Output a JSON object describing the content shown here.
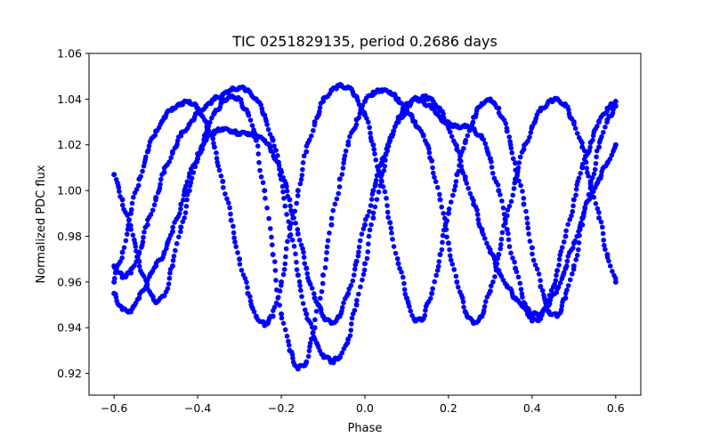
{
  "chart_data": {
    "type": "scatter",
    "title": "TIC 0251829135, period 0.2686 days",
    "xlabel": "Phase",
    "ylabel": "Normalized PDC flux",
    "xlim": [
      -0.66,
      0.66
    ],
    "ylim": [
      0.9105,
      1.06
    ],
    "xticks": [
      -0.6,
      -0.4,
      -0.2,
      0.0,
      0.2,
      0.4,
      0.6
    ],
    "xtick_labels": [
      "−0.6",
      "−0.4",
      "−0.2",
      "0.0",
      "0.2",
      "0.4",
      "0.6"
    ],
    "yticks": [
      0.92,
      0.94,
      0.96,
      0.98,
      1.0,
      1.02,
      1.04,
      1.06
    ],
    "ytick_labels": [
      "0.92",
      "0.94",
      "0.96",
      "0.98",
      "1.00",
      "1.02",
      "1.04",
      "1.06"
    ],
    "grid": false,
    "marker_color": "#0000ff",
    "series": [
      {
        "x": [
          -0.6,
          -0.58,
          -0.56,
          -0.54,
          -0.52,
          -0.5,
          -0.48,
          -0.46,
          -0.44,
          -0.42,
          -0.4,
          -0.38,
          -0.36,
          -0.34,
          -0.32,
          -0.3,
          -0.28,
          -0.26,
          -0.24,
          -0.22,
          -0.2,
          -0.18,
          -0.16,
          -0.14,
          -0.12,
          -0.1,
          -0.08,
          -0.06,
          -0.04,
          -0.02,
          0.0,
          0.02,
          0.04,
          0.06,
          0.08,
          0.1,
          0.12,
          0.14,
          0.16,
          0.18,
          0.2,
          0.22,
          0.24,
          0.26,
          0.28,
          0.3,
          0.32,
          0.34,
          0.36,
          0.38,
          0.4,
          0.42,
          0.44,
          0.46,
          0.48,
          0.5,
          0.52,
          0.54,
          0.56,
          0.58,
          0.6
        ],
        "y": [
          0.96,
          0.973,
          0.99,
          1.005,
          1.017,
          1.026,
          1.032,
          1.036,
          1.038,
          1.039,
          1.036,
          1.03,
          1.019,
          1.004,
          0.987,
          0.97,
          0.955,
          0.945,
          0.941,
          0.945,
          0.96,
          0.98,
          1.0,
          1.017,
          1.03,
          1.039,
          1.044,
          1.046,
          1.045,
          1.041,
          1.033,
          1.02,
          1.004,
          0.986,
          0.968,
          0.953,
          0.943,
          0.944,
          0.955,
          0.972,
          0.99,
          1.007,
          1.021,
          1.032,
          1.038,
          1.04,
          1.036,
          1.026,
          1.012,
          0.994,
          0.975,
          0.958,
          0.947,
          0.945,
          0.953,
          0.967,
          0.985,
          1.003,
          1.019,
          1.031,
          1.037
        ]
      },
      {
        "x": [
          -0.6,
          -0.58,
          -0.56,
          -0.54,
          -0.52,
          -0.5,
          -0.48,
          -0.46,
          -0.44,
          -0.42,
          -0.4,
          -0.38,
          -0.36,
          -0.34,
          -0.32,
          -0.3,
          -0.28,
          -0.26,
          -0.24,
          -0.22,
          -0.2,
          -0.18,
          -0.16,
          -0.14,
          -0.12,
          -0.1,
          -0.08,
          -0.06,
          -0.04,
          -0.02,
          0.0,
          0.02,
          0.04,
          0.06,
          0.08,
          0.1,
          0.12,
          0.14,
          0.16,
          0.18,
          0.2,
          0.22,
          0.24,
          0.26,
          0.28,
          0.3,
          0.32,
          0.34,
          0.36,
          0.38,
          0.4,
          0.42,
          0.44,
          0.46,
          0.48,
          0.5,
          0.52,
          0.54,
          0.56,
          0.58,
          0.6
        ],
        "y": [
          1.007,
          0.996,
          0.983,
          0.969,
          0.957,
          0.951,
          0.954,
          0.967,
          0.984,
          1.0,
          1.014,
          1.025,
          1.034,
          1.039,
          1.041,
          1.04,
          1.034,
          1.022,
          1.0,
          0.972,
          0.946,
          0.93,
          0.922,
          0.925,
          0.94,
          0.963,
          0.985,
          1.005,
          1.02,
          1.031,
          1.039,
          1.043,
          1.044,
          1.043,
          1.04,
          1.035,
          1.03,
          1.024,
          1.013,
          0.996,
          0.977,
          0.96,
          0.947,
          0.942,
          0.945,
          0.956,
          0.972,
          0.989,
          1.005,
          1.018,
          1.028,
          1.035,
          1.039,
          1.04,
          1.037,
          1.03,
          1.019,
          1.004,
          0.988,
          0.972,
          0.96
        ]
      },
      {
        "x": [
          -0.6,
          -0.58,
          -0.56,
          -0.54,
          -0.52,
          -0.5,
          -0.48,
          -0.46,
          -0.44,
          -0.42,
          -0.4,
          -0.38,
          -0.36,
          -0.34,
          -0.32,
          -0.3,
          -0.28,
          -0.26,
          -0.24,
          -0.22,
          -0.2,
          -0.18,
          -0.16,
          -0.14,
          -0.12,
          -0.1,
          -0.08,
          -0.06,
          -0.04,
          -0.02,
          0.0,
          0.02,
          0.04,
          0.06,
          0.08,
          0.1,
          0.12,
          0.14,
          0.16,
          0.18,
          0.2,
          0.22,
          0.24,
          0.26,
          0.28,
          0.3,
          0.32,
          0.34,
          0.36,
          0.38,
          0.4,
          0.42,
          0.44,
          0.46,
          0.48,
          0.5,
          0.52,
          0.54,
          0.56,
          0.58,
          0.6
        ],
        "y": [
          0.967,
          0.962,
          0.964,
          0.973,
          0.985,
          0.997,
          1.008,
          1.017,
          1.024,
          1.029,
          1.034,
          1.037,
          1.04,
          1.042,
          1.044,
          1.045,
          1.044,
          1.04,
          1.033,
          1.022,
          1.005,
          0.984,
          0.963,
          0.946,
          0.935,
          0.928,
          0.925,
          0.927,
          0.935,
          0.95,
          0.968,
          0.988,
          1.007,
          1.022,
          1.032,
          1.038,
          1.04,
          1.039,
          1.036,
          1.032,
          1.029,
          1.028,
          1.028,
          1.027,
          1.023,
          1.014,
          1.0,
          0.983,
          0.966,
          0.951,
          0.943,
          0.944,
          0.952,
          0.965,
          0.98,
          0.996,
          1.01,
          1.021,
          1.03,
          1.036,
          1.039
        ]
      },
      {
        "x": [
          -0.6,
          -0.58,
          -0.56,
          -0.54,
          -0.52,
          -0.5,
          -0.48,
          -0.46,
          -0.44,
          -0.42,
          -0.4,
          -0.38,
          -0.36,
          -0.34,
          -0.32,
          -0.3,
          -0.28,
          -0.26,
          -0.24,
          -0.22,
          -0.2,
          -0.18,
          -0.16,
          -0.14,
          -0.12,
          -0.1,
          -0.08,
          -0.06,
          -0.04,
          -0.02,
          0.0,
          0.02,
          0.04,
          0.06,
          0.08,
          0.1,
          0.12,
          0.14,
          0.16,
          0.18,
          0.2,
          0.22,
          0.24,
          0.26,
          0.28,
          0.3,
          0.32,
          0.34,
          0.36,
          0.38,
          0.4,
          0.42,
          0.44,
          0.46,
          0.48,
          0.5,
          0.52,
          0.54,
          0.56,
          0.58,
          0.6
        ],
        "y": [
          0.955,
          0.948,
          0.947,
          0.953,
          0.961,
          0.967,
          0.973,
          0.982,
          0.994,
          1.006,
          1.016,
          1.022,
          1.026,
          1.027,
          1.026,
          1.025,
          1.025,
          1.024,
          1.022,
          1.017,
          1.008,
          0.996,
          0.981,
          0.966,
          0.953,
          0.945,
          0.942,
          0.945,
          0.955,
          0.969,
          0.985,
          1.0,
          1.012,
          1.022,
          1.03,
          1.036,
          1.04,
          1.041,
          1.04,
          1.035,
          1.028,
          1.018,
          1.006,
          0.994,
          0.983,
          0.973,
          0.965,
          0.958,
          0.953,
          0.949,
          0.946,
          0.946,
          0.95,
          0.957,
          0.966,
          0.977,
          0.988,
          0.998,
          1.005,
          1.012,
          1.02
        ]
      }
    ]
  }
}
